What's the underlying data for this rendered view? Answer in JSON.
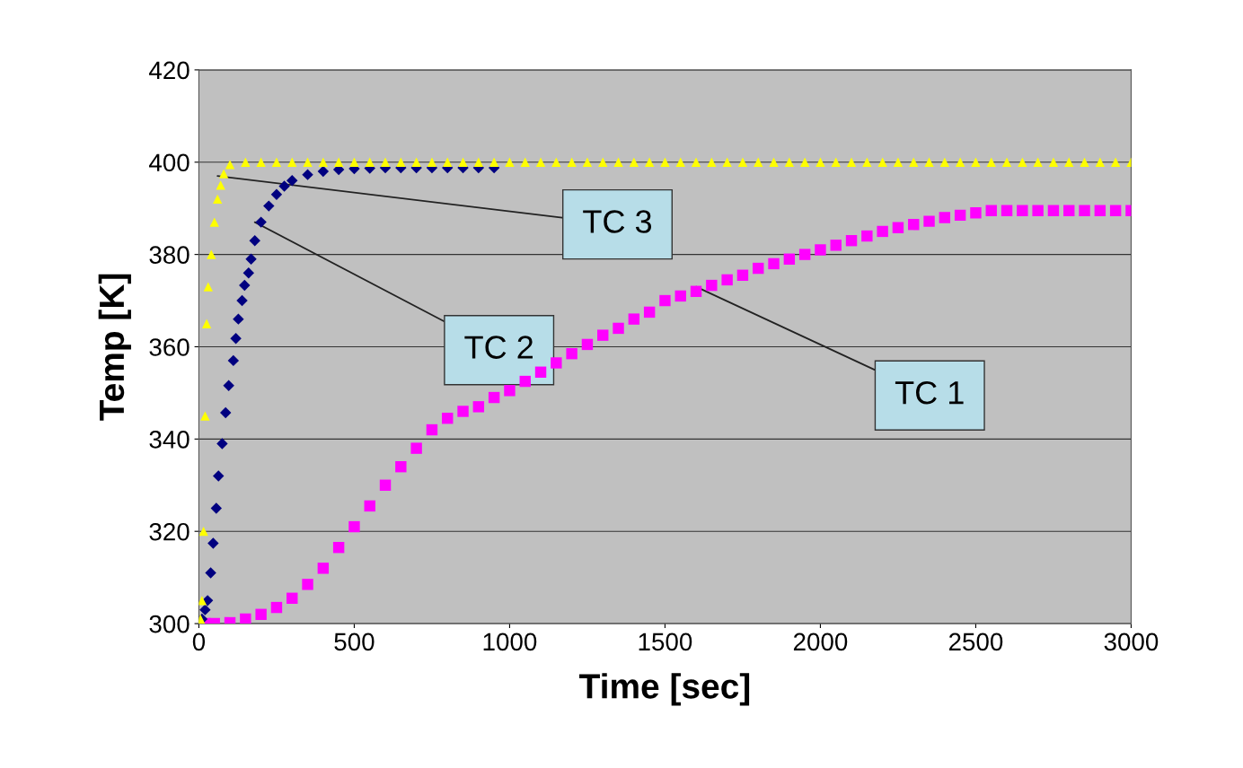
{
  "chart_data": {
    "type": "scatter",
    "xlabel": "Time [sec]",
    "ylabel": "Temp [K]",
    "xlim": [
      0,
      3000
    ],
    "xticks": [
      0,
      500,
      1000,
      1500,
      2000,
      2500,
      3000
    ],
    "ylim": [
      300,
      420
    ],
    "yticks": [
      300,
      320,
      340,
      360,
      380,
      400,
      420
    ],
    "grid": "y",
    "series": [
      {
        "color": "#ff00ff",
        "marker": "square",
        "x": [
          20,
          50,
          100,
          150,
          200,
          250,
          300,
          350,
          400,
          450,
          500,
          550,
          600,
          650,
          700,
          750,
          800,
          850,
          900,
          950,
          1000,
          1050,
          1100,
          1150,
          1200,
          1250,
          1300,
          1350,
          1400,
          1450,
          1500,
          1550,
          1600,
          1650,
          1700,
          1750,
          1800,
          1850,
          1900,
          1950,
          2000,
          2050,
          2100,
          2150,
          2200,
          2250,
          2300,
          2350,
          2400,
          2450,
          2500,
          2550,
          2600,
          2650,
          2700,
          2750,
          2800,
          2850,
          2900,
          2950,
          3000
        ],
        "values": [
          300,
          300,
          300.2,
          301,
          302,
          303.5,
          305.5,
          308.5,
          312,
          316.5,
          321,
          325.5,
          330,
          334,
          338,
          342,
          344.5,
          346,
          347,
          349,
          350.5,
          352.5,
          354.5,
          356.5,
          358.5,
          360.5,
          362.5,
          364,
          366,
          367.5,
          370,
          371,
          372,
          373.3,
          374.5,
          375.5,
          377,
          378,
          379,
          380,
          381,
          382,
          383,
          384,
          385,
          385.8,
          386.5,
          387.2,
          388,
          388.5,
          389,
          389.5,
          389.5,
          389.5,
          389.5,
          389.5,
          389.5,
          389.5,
          389.5,
          389.5,
          389.5
        ]
      },
      {
        "color": "#000080",
        "marker": "diamond",
        "x": [
          10,
          20,
          28,
          38,
          46,
          56,
          63,
          75,
          86,
          96,
          111,
          119,
          127,
          139,
          147,
          160,
          168,
          180,
          200,
          225,
          250,
          275,
          300,
          350,
          400,
          450,
          500,
          550,
          600,
          650,
          700,
          750,
          800,
          850,
          900,
          950
        ],
        "values": [
          301,
          303,
          305,
          311,
          317.4,
          325,
          332,
          339,
          345.7,
          351.6,
          357,
          361.8,
          366,
          370,
          373.3,
          376,
          379,
          383,
          387,
          390.5,
          393,
          394.8,
          396,
          397.3,
          398,
          398.4,
          398.6,
          398.7,
          398.8,
          398.8,
          398.8,
          398.8,
          398.8,
          398.8,
          398.8,
          398.8
        ]
      },
      {
        "color": "#ffff00",
        "marker": "triangle",
        "x": [
          0,
          5,
          10,
          15,
          20,
          25,
          30,
          40,
          50,
          60,
          70,
          80,
          100,
          150,
          200,
          250,
          300,
          350,
          400,
          450,
          500,
          550,
          600,
          650,
          700,
          750,
          800,
          850,
          900,
          950,
          1000,
          1050,
          1100,
          1150,
          1200,
          1250,
          1300,
          1350,
          1400,
          1450,
          1500,
          1550,
          1600,
          1650,
          1700,
          1750,
          1800,
          1850,
          1900,
          1950,
          2000,
          2050,
          2100,
          2150,
          2200,
          2250,
          2300,
          2350,
          2400,
          2450,
          2500,
          2550,
          2600,
          2650,
          2700,
          2750,
          2800,
          2850,
          2900,
          2950,
          3000
        ],
        "values": [
          300,
          301,
          305,
          320,
          345,
          365,
          373,
          380,
          387,
          392,
          395,
          397.5,
          399.5,
          400,
          400,
          400,
          400,
          400,
          400,
          400,
          400,
          400,
          400,
          400,
          400,
          400,
          400,
          400,
          400,
          400,
          400,
          400,
          400,
          400,
          400,
          400,
          400,
          400,
          400,
          400,
          400,
          400,
          400,
          400,
          400,
          400,
          400,
          400,
          400,
          400,
          400,
          400,
          400,
          400,
          400,
          400,
          400,
          400,
          400,
          400,
          400,
          400,
          400,
          400,
          400,
          400,
          400,
          400,
          400,
          400,
          400
        ]
      }
    ],
    "annotations": [
      {
        "text": "TC 3",
        "x": 60,
        "y": 397
      },
      {
        "text": "TC 2",
        "x": 180,
        "y": 387
      },
      {
        "text": "TC 1",
        "x": 1600,
        "y": 373
      }
    ]
  }
}
